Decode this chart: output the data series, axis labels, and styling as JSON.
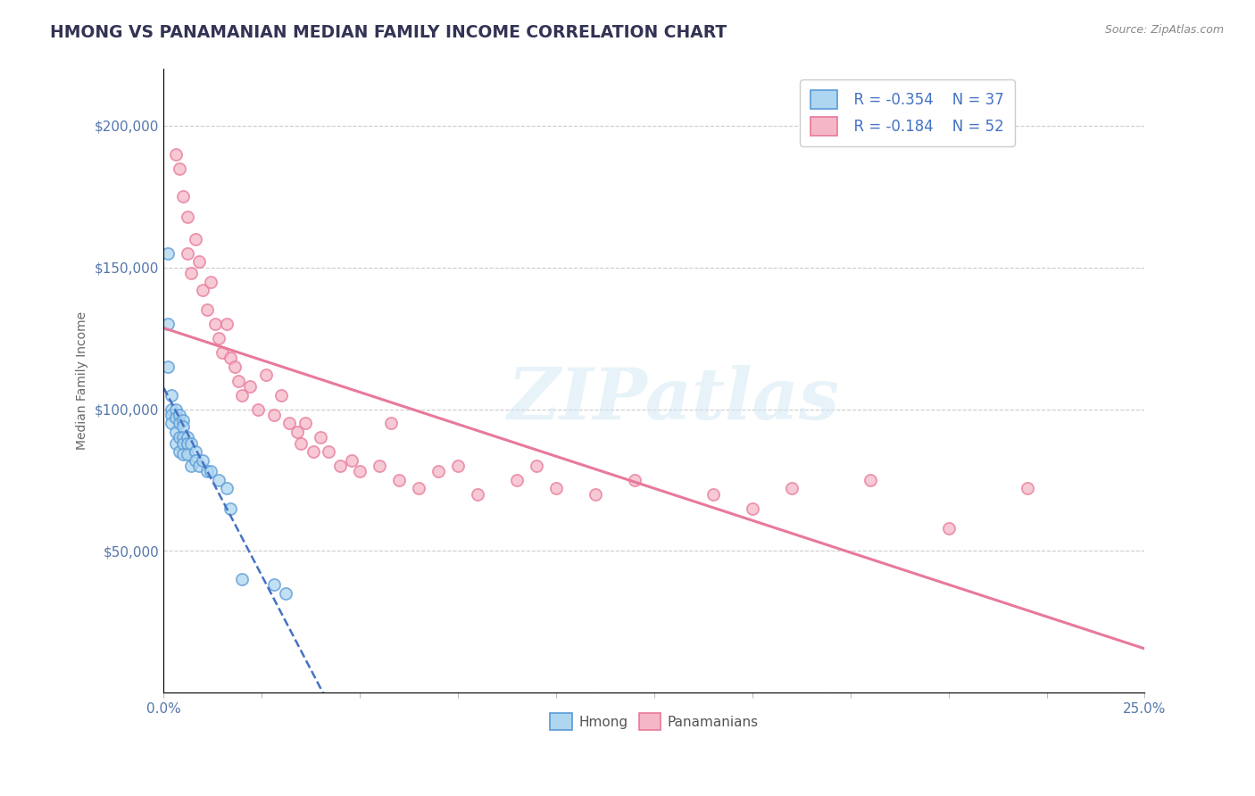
{
  "title": "HMONG VS PANAMANIAN MEDIAN FAMILY INCOME CORRELATION CHART",
  "source": "Source: ZipAtlas.com",
  "ylabel": "Median Family Income",
  "yticks": [
    0,
    50000,
    100000,
    150000,
    200000
  ],
  "ytick_labels": [
    "",
    "$50,000",
    "$100,000",
    "$150,000",
    "$200,000"
  ],
  "xlim": [
    0.0,
    0.25
  ],
  "ylim": [
    0,
    220000
  ],
  "legend_r1": "R = -0.354",
  "legend_n1": "N = 37",
  "legend_r2": "R = -0.184",
  "legend_n2": "N = 52",
  "watermark": "ZIPatlas",
  "hmong_color": "#aed6f1",
  "panamanian_color": "#f5b7c8",
  "hmong_edge_color": "#5b9bd5",
  "panamanian_edge_color": "#e8799a",
  "hmong_line_color": "#4472c4",
  "panamanian_line_color": "#e8799a",
  "hmong_x": [
    0.001,
    0.001,
    0.001,
    0.002,
    0.002,
    0.002,
    0.002,
    0.003,
    0.003,
    0.003,
    0.003,
    0.004,
    0.004,
    0.004,
    0.004,
    0.005,
    0.005,
    0.005,
    0.005,
    0.005,
    0.006,
    0.006,
    0.006,
    0.007,
    0.007,
    0.008,
    0.008,
    0.009,
    0.01,
    0.011,
    0.012,
    0.014,
    0.016,
    0.017,
    0.02,
    0.028,
    0.031
  ],
  "hmong_y": [
    155000,
    130000,
    115000,
    105000,
    100000,
    98000,
    95000,
    100000,
    97000,
    92000,
    88000,
    98000,
    95000,
    90000,
    85000,
    96000,
    94000,
    90000,
    88000,
    84000,
    90000,
    88000,
    84000,
    88000,
    80000,
    85000,
    82000,
    80000,
    82000,
    78000,
    78000,
    75000,
    72000,
    65000,
    40000,
    38000,
    35000
  ],
  "panama_x": [
    0.003,
    0.004,
    0.005,
    0.006,
    0.006,
    0.007,
    0.008,
    0.009,
    0.01,
    0.011,
    0.012,
    0.013,
    0.014,
    0.015,
    0.016,
    0.017,
    0.018,
    0.019,
    0.02,
    0.022,
    0.024,
    0.026,
    0.028,
    0.03,
    0.032,
    0.034,
    0.035,
    0.036,
    0.038,
    0.04,
    0.042,
    0.045,
    0.048,
    0.05,
    0.055,
    0.058,
    0.06,
    0.065,
    0.07,
    0.075,
    0.08,
    0.09,
    0.095,
    0.1,
    0.11,
    0.12,
    0.14,
    0.15,
    0.16,
    0.18,
    0.2,
    0.22
  ],
  "panama_y": [
    190000,
    185000,
    175000,
    168000,
    155000,
    148000,
    160000,
    152000,
    142000,
    135000,
    145000,
    130000,
    125000,
    120000,
    130000,
    118000,
    115000,
    110000,
    105000,
    108000,
    100000,
    112000,
    98000,
    105000,
    95000,
    92000,
    88000,
    95000,
    85000,
    90000,
    85000,
    80000,
    82000,
    78000,
    80000,
    95000,
    75000,
    72000,
    78000,
    80000,
    70000,
    75000,
    80000,
    72000,
    70000,
    75000,
    70000,
    65000,
    72000,
    75000,
    58000,
    72000
  ]
}
